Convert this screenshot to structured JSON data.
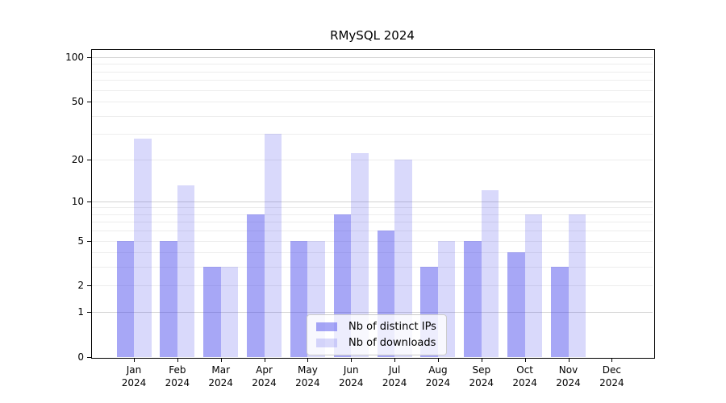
{
  "figure": {
    "background": "#ffffff",
    "axis_color": "#000000"
  },
  "chart_data": {
    "type": "bar",
    "title": "RMySQL 2024",
    "categories": [
      "Jan 2024",
      "Feb 2024",
      "Mar 2024",
      "Apr 2024",
      "May 2024",
      "Jun 2024",
      "Jul 2024",
      "Aug 2024",
      "Sep 2024",
      "Oct 2024",
      "Nov 2024",
      "Dec 2024"
    ],
    "series": [
      {
        "name": "Nb of distinct IPs",
        "color": "#4040ec",
        "alpha": 0.46,
        "values": [
          5,
          5,
          3,
          8,
          5,
          8,
          6,
          3,
          5,
          4,
          3,
          0
        ]
      },
      {
        "name": "Nb of downloads",
        "color": "#4040ec",
        "alpha": 0.2,
        "values": [
          28,
          13,
          3,
          30,
          5,
          22,
          20,
          5,
          12,
          8,
          8,
          0
        ]
      }
    ],
    "yscale": "log1p",
    "ylim": [
      0,
      100
    ],
    "yticks": [
      0,
      1,
      2,
      5,
      10,
      20,
      50,
      100
    ],
    "grid": {
      "major_lines": [
        1,
        10,
        100
      ],
      "minor_lines": [
        2,
        3,
        4,
        5,
        6,
        7,
        8,
        9,
        20,
        30,
        40,
        50,
        60,
        70,
        80,
        90
      ],
      "major_color": "#d2d2d2",
      "minor_color": "#ededed"
    },
    "legend": {
      "position": "bottom-center",
      "entries": [
        "Nb of distinct IPs",
        "Nb of downloads"
      ]
    }
  }
}
